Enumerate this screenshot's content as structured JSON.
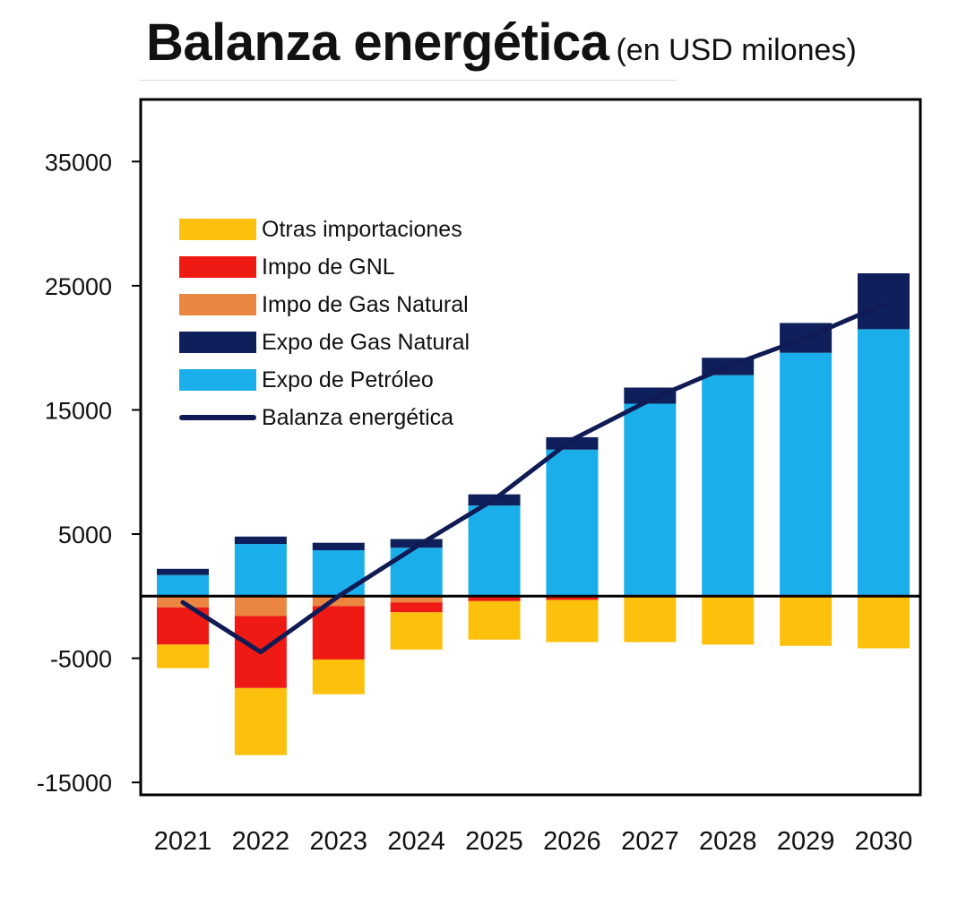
{
  "chart_data": {
    "type": "bar",
    "stacked": true,
    "title": "Balanza energética",
    "subtitle": "(en USD milones)",
    "xlabel": "",
    "ylabel": "",
    "ylim": [
      -16000,
      40000
    ],
    "yticks": [
      35000,
      25000,
      15000,
      5000,
      -5000,
      -15000
    ],
    "ytick_labels": [
      "35000",
      "25000",
      "15000",
      "5000",
      "-5000",
      "-15000"
    ],
    "categories": [
      "2021",
      "2022",
      "2023",
      "2024",
      "2025",
      "2026",
      "2027",
      "2028",
      "2029",
      "2030"
    ],
    "legend_position": "upper-left",
    "series": [
      {
        "name": "Expo de Petróleo",
        "color": "#1AAEEA",
        "values": [
          1700,
          4200,
          3700,
          3900,
          7300,
          11800,
          15500,
          17800,
          19600,
          21500
        ]
      },
      {
        "name": "Expo de Gas Natural",
        "color": "#0E1F5B",
        "values": [
          500,
          600,
          600,
          700,
          900,
          1000,
          1300,
          1400,
          2400,
          4500
        ]
      },
      {
        "name": "Impo de Gas Natural",
        "color": "#EA8640",
        "values": [
          -900,
          -1600,
          -800,
          -500,
          -100,
          -100,
          0,
          0,
          0,
          0
        ]
      },
      {
        "name": "Impo de GNL",
        "color": "#F01A14",
        "values": [
          -3000,
          -5800,
          -4300,
          -800,
          -300,
          -200,
          0,
          0,
          0,
          0
        ]
      },
      {
        "name": "Otras importaciones",
        "color": "#FDC10D",
        "values": [
          -1900,
          -5400,
          -2800,
          -3000,
          -3100,
          -3400,
          -3700,
          -3900,
          -4000,
          -4200
        ]
      },
      {
        "name": "Balanza energética",
        "type": "line",
        "color": "#101A55",
        "values": [
          -500,
          -4500,
          0,
          4000,
          7800,
          12600,
          15800,
          18500,
          20800,
          23500
        ]
      }
    ],
    "legend_order": [
      "Otras importaciones",
      "Impo de GNL",
      "Impo de Gas Natural",
      "Expo de Gas Natural",
      "Expo de Petróleo",
      "Balanza energética"
    ]
  }
}
